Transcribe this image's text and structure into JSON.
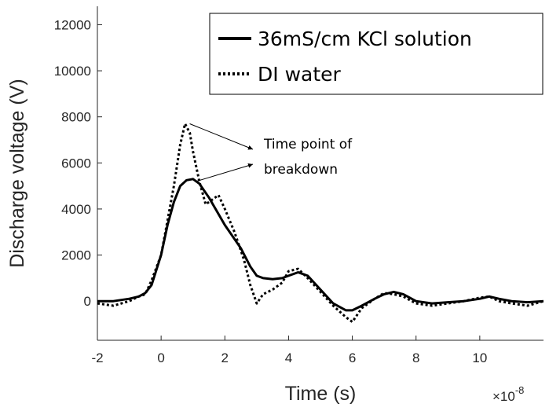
{
  "chart_data": {
    "type": "line",
    "xlabel": "Time (s)",
    "ylabel": "Discharge voltage (V)",
    "x_multiplier": "×10",
    "x_multiplier_exp": "-8",
    "xlim": [
      -2,
      12
    ],
    "ylim": [
      -1700,
      12800
    ],
    "xticks": [
      -2,
      0,
      2,
      4,
      6,
      8,
      10
    ],
    "yticks": [
      0,
      2000,
      4000,
      6000,
      8000,
      10000,
      12000
    ],
    "grid": false,
    "legend_position": "top-right",
    "series": [
      {
        "name": "36mS/cm KCl solution",
        "style": "solid",
        "color": "#000000",
        "x": [
          -2,
          -1.5,
          -1,
          -0.7,
          -0.5,
          -0.3,
          0,
          0.2,
          0.4,
          0.6,
          0.8,
          1.0,
          1.2,
          1.5,
          2.0,
          2.5,
          2.8,
          3.0,
          3.2,
          3.5,
          3.8,
          4.0,
          4.3,
          4.6,
          5.0,
          5.4,
          5.8,
          6.0,
          6.3,
          6.7,
          7.0,
          7.3,
          7.6,
          8.0,
          8.5,
          9.0,
          9.5,
          10.0,
          10.3,
          10.6,
          11.0,
          11.5,
          12.0
        ],
        "y": [
          0,
          0,
          100,
          200,
          350,
          700,
          2000,
          3300,
          4300,
          5000,
          5250,
          5300,
          5100,
          4500,
          3300,
          2300,
          1500,
          1100,
          1000,
          950,
          1000,
          1100,
          1250,
          1100,
          500,
          -100,
          -400,
          -400,
          -200,
          100,
          300,
          400,
          300,
          0,
          -100,
          -50,
          0,
          100,
          200,
          100,
          0,
          -50,
          0
        ]
      },
      {
        "name": "DI water",
        "style": "dotted",
        "color": "#000000",
        "x": [
          -2,
          -1.5,
          -1,
          -0.7,
          -0.5,
          -0.3,
          0,
          0.2,
          0.4,
          0.6,
          0.75,
          0.9,
          1.0,
          1.2,
          1.4,
          1.6,
          1.8,
          2.0,
          2.3,
          2.6,
          2.8,
          3.0,
          3.2,
          3.5,
          3.8,
          4.0,
          4.3,
          4.6,
          5.0,
          5.4,
          5.8,
          6.0,
          6.3,
          6.7,
          7.0,
          7.3,
          7.6,
          8.0,
          8.5,
          9.0,
          9.5,
          10.0,
          10.3,
          10.6,
          11.0,
          11.5,
          12.0
        ],
        "y": [
          -100,
          -200,
          0,
          200,
          300,
          900,
          2000,
          3500,
          5000,
          6800,
          7700,
          7300,
          6500,
          5200,
          4200,
          4400,
          4600,
          4000,
          3000,
          1800,
          700,
          -100,
          300,
          500,
          800,
          1300,
          1400,
          1000,
          400,
          -200,
          -700,
          -900,
          -300,
          100,
          350,
          300,
          200,
          -100,
          -200,
          -100,
          0,
          150,
          200,
          0,
          -100,
          -200,
          0
        ]
      }
    ],
    "annotations": [
      {
        "text_line1": "Time point of",
        "text_line2": "breakdown",
        "arrow_from": [
          4.0,
          6850
        ],
        "arrow_targets": [
          [
            0.75,
            7700
          ],
          [
            0.95,
            5200
          ]
        ]
      }
    ]
  }
}
